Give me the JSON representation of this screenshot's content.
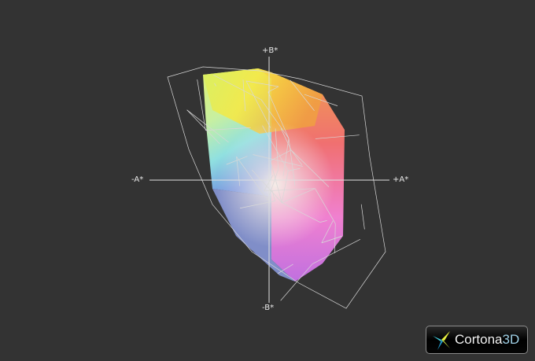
{
  "axes": {
    "b_plus": "+B*",
    "b_minus": "-B*",
    "a_minus": "-A*",
    "a_plus": "+A*"
  },
  "logo": {
    "name": "Cortona",
    "suffix": "3D",
    "icon": "cortona-star-icon"
  },
  "colors": {
    "background": "#333333",
    "wireframe": "#d8d8d8",
    "axis": "#e0e0e0"
  }
}
